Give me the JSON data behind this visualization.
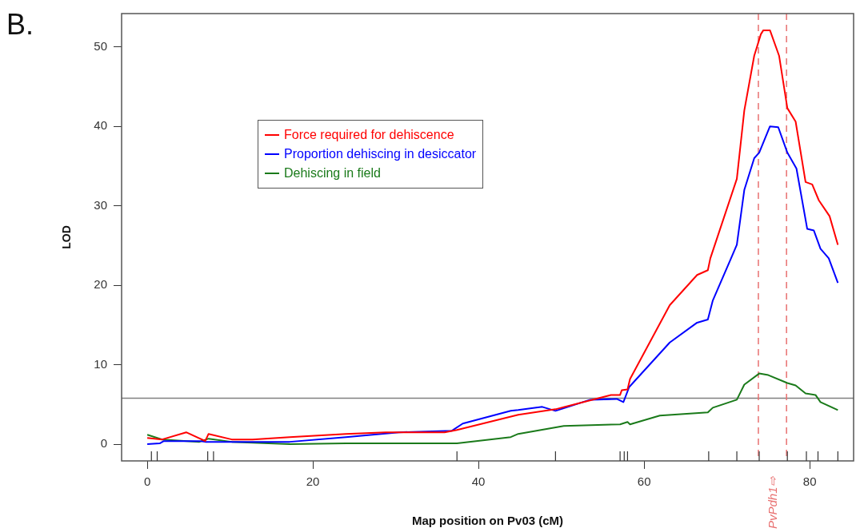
{
  "chart_data": {
    "type": "line",
    "title": "B.",
    "xlabel": "Map position on Pv03 (cM)",
    "ylabel": "LOD",
    "xlim": [
      -3.1,
      85.3
    ],
    "ylim": [
      -2.1,
      54.2
    ],
    "xticks": [
      0,
      {
        "value": 0.5,
        "label": null
      },
      {
        "value": 1.2,
        "label": null
      },
      {
        "value": 7.3,
        "label": null
      },
      {
        "value": 8.0,
        "label": null
      },
      20,
      {
        "value": 37.4,
        "label": null
      },
      40,
      {
        "value": 49.3,
        "label": null
      },
      {
        "value": 57.1,
        "label": null
      },
      {
        "value": 57.6,
        "label": null
      },
      {
        "value": 58.0,
        "label": null
      },
      60,
      {
        "value": 67.8,
        "label": null
      },
      {
        "value": 71.2,
        "label": null
      },
      {
        "value": 73.9,
        "label": null
      },
      {
        "value": 77.3,
        "label": null
      },
      {
        "value": 79.6,
        "label": null
      },
      80,
      {
        "value": 81.0,
        "label": null
      },
      {
        "value": 83.4,
        "label": null
      }
    ],
    "yticks": [
      0,
      10,
      20,
      30,
      40,
      50
    ],
    "grid": false,
    "legend": "top left",
    "marker": "none",
    "line_style": "solid",
    "series": [
      {
        "name": "Force required for dehiscence",
        "color": "#ff0000",
        "x": [
          0,
          1.8,
          4.7,
          7,
          7.4,
          10.2,
          12.7,
          17.2,
          24,
          28.8,
          35.9,
          37.4,
          44.8,
          49.3,
          56,
          57.1,
          57.3,
          58,
          58.3,
          63.1,
          66.4,
          67.7,
          68,
          71.2,
          72.1,
          73.3,
          74.1,
          74.4,
          75.2,
          76.3,
          77.3,
          78.3,
          79.5,
          80.3,
          81.1,
          82.4,
          83.4
        ],
        "values": [
          0.8,
          0.6,
          1.5,
          0.4,
          1.3,
          0.6,
          0.6,
          0.9,
          1.3,
          1.5,
          1.5,
          1.8,
          3.7,
          4.4,
          6.2,
          6.2,
          6.8,
          6.9,
          8.2,
          17.5,
          21.3,
          21.9,
          23.4,
          33.4,
          42,
          48.9,
          51.6,
          52.1,
          52.1,
          48.9,
          42.3,
          40.6,
          33,
          32.7,
          30.7,
          28.7,
          25.1
        ]
      },
      {
        "name": "Proportion dehiscing in desiccator",
        "color": "#0000ff",
        "x": [
          0,
          1.5,
          2,
          6.3,
          7,
          10.2,
          17.2,
          24,
          30.4,
          36.8,
          38.1,
          43.9,
          44.8,
          47.7,
          49.3,
          53.5,
          56.7,
          57.5,
          58.2,
          63.1,
          66.4,
          67.7,
          68.3,
          70.5,
          71.2,
          72.1,
          73.3,
          73.9,
          75.2,
          76.2,
          77.3,
          78.4,
          79.7,
          80.5,
          81.3,
          82.3,
          83.4
        ],
        "values": [
          0,
          0.1,
          0.4,
          0.4,
          0.3,
          0.3,
          0.3,
          0.9,
          1.5,
          1.7,
          2.6,
          4.2,
          4.3,
          4.7,
          4.2,
          5.6,
          5.7,
          5.3,
          7.2,
          12.8,
          15.3,
          15.7,
          18.1,
          23.4,
          25.1,
          32,
          36,
          36.7,
          40,
          39.9,
          36.7,
          34.7,
          27.1,
          26.9,
          24.6,
          23.4,
          20.3
        ]
      },
      {
        "name": "Dehiscing in field",
        "color": "#1a7a1a",
        "x": [
          0,
          1.8,
          6.3,
          7.4,
          10.2,
          17.2,
          24,
          37.4,
          43.9,
          44.8,
          50.3,
          57.1,
          58,
          58.3,
          61.9,
          67.7,
          68.3,
          71.2,
          72.1,
          73.9,
          75,
          77.3,
          78.3,
          79.5,
          80.7,
          81.3,
          83.4
        ],
        "values": [
          1.2,
          0.6,
          0.3,
          0.7,
          0.3,
          0,
          0.1,
          0.1,
          0.9,
          1.3,
          2.3,
          2.5,
          2.8,
          2.5,
          3.6,
          4,
          4.6,
          5.6,
          7.5,
          8.9,
          8.7,
          7.7,
          7.4,
          6.4,
          6.2,
          5.3,
          4.3
        ]
      }
    ],
    "ref_lines": [
      {
        "axis": "y",
        "value": 5.8,
        "color": "#808080",
        "line_style": "solid"
      },
      {
        "axis": "x",
        "value": 73.8,
        "color": "#e87070",
        "line_style": "dashed"
      },
      {
        "axis": "x",
        "value": 77.2,
        "color": "#e87070",
        "line_style": "dashed"
      }
    ],
    "annotations": [
      "PvPdh1⇨"
    ]
  }
}
